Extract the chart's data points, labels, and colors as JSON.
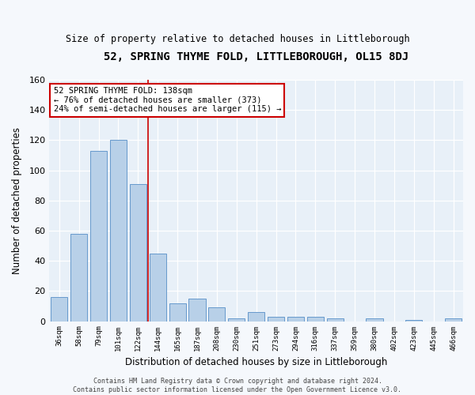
{
  "title": "52, SPRING THYME FOLD, LITTLEBOROUGH, OL15 8DJ",
  "subtitle": "Size of property relative to detached houses in Littleborough",
  "xlabel": "Distribution of detached houses by size in Littleborough",
  "ylabel": "Number of detached properties",
  "categories": [
    "36sqm",
    "58sqm",
    "79sqm",
    "101sqm",
    "122sqm",
    "144sqm",
    "165sqm",
    "187sqm",
    "208sqm",
    "230sqm",
    "251sqm",
    "273sqm",
    "294sqm",
    "316sqm",
    "337sqm",
    "359sqm",
    "380sqm",
    "402sqm",
    "423sqm",
    "445sqm",
    "466sqm"
  ],
  "values": [
    16,
    58,
    113,
    120,
    91,
    45,
    12,
    15,
    9,
    2,
    6,
    3,
    3,
    3,
    2,
    0,
    2,
    0,
    1,
    0,
    2
  ],
  "bar_color": "#b8d0e8",
  "bar_edge_color": "#6699cc",
  "highlight_color": "#cc0000",
  "annotation_text": "52 SPRING THYME FOLD: 138sqm\n← 76% of detached houses are smaller (373)\n24% of semi-detached houses are larger (115) →",
  "annotation_box_color": "#ffffff",
  "annotation_box_edge": "#cc0000",
  "ylim": [
    0,
    160
  ],
  "plot_bg_color": "#e8f0f8",
  "fig_bg_color": "#f5f8fc",
  "footer": "Contains HM Land Registry data © Crown copyright and database right 2024.\nContains public sector information licensed under the Open Government Licence v3.0.",
  "yticks": [
    0,
    20,
    40,
    60,
    80,
    100,
    120,
    140,
    160
  ]
}
